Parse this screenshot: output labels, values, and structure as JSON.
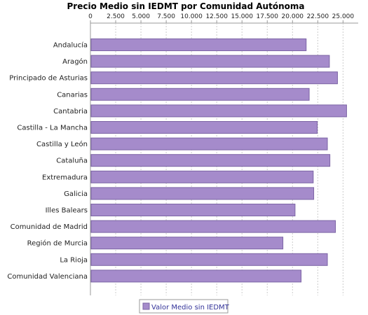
{
  "chart_data": {
    "type": "bar",
    "orientation": "horizontal",
    "title": "Precio Medio sin IEDMT por Comunidad Autónoma",
    "xlabel": "",
    "ylabel": "",
    "xlim": [
      0,
      26500
    ],
    "ticks": [
      0,
      2500,
      5000,
      7500,
      10000,
      12500,
      15000,
      17500,
      20000,
      22500,
      25000
    ],
    "tick_labels": [
      "0",
      "2.500",
      "5.000",
      "7.500",
      "10.000",
      "12.500",
      "15.000",
      "17.500",
      "20.000",
      "22.500",
      "25.000"
    ],
    "tick_axis_position": "top",
    "grid": true,
    "categories": [
      "Andalucía",
      "Aragón",
      "Principado de Asturias",
      "Canarias",
      "Cantabria",
      "Castilla - La Mancha",
      "Castilla y León",
      "Cataluña",
      "Extremadura",
      "Galicia",
      "Illes Balears",
      "Comunidad de Madrid",
      "Región de Murcia",
      "La Rioja",
      "Comunidad Valenciana"
    ],
    "series": [
      {
        "name": "Valor Medio sin IEDMT",
        "values": [
          21350,
          23650,
          24450,
          21650,
          25350,
          22450,
          23450,
          23700,
          22050,
          22100,
          20250,
          24250,
          19050,
          23450,
          20850
        ]
      }
    ],
    "colors": {
      "bar_fill": "#a58bcb",
      "bar_stroke": "#7c64a5",
      "grid": "#cccccc",
      "axis": "#999999",
      "legend_text": "#333399"
    },
    "legend_position": "bottom"
  }
}
